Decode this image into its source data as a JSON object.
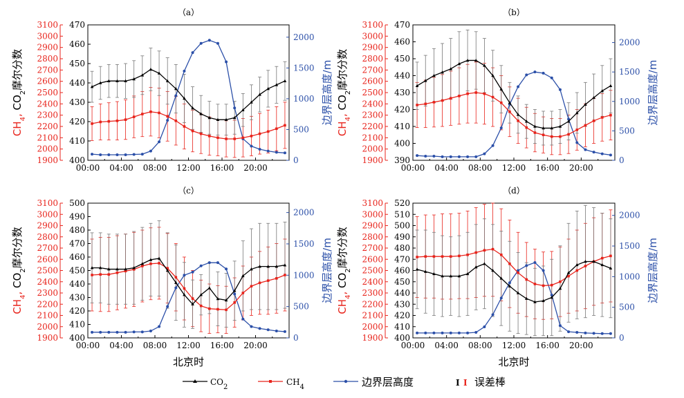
{
  "figure": {
    "ylabel_left_ch4": "CH",
    "ylabel_left_ch4_sub": "4",
    "ylabel_left_sep": ",",
    "ylabel_left_co2": "CO",
    "ylabel_left_co2_sub": "2",
    "ylabel_left_suffix": "摩尔分数",
    "ylabel_right": "边界层高度/m",
    "xlabel": "北京时",
    "legend": {
      "co2": "CO",
      "co2_sub": "2",
      "ch4": "CH",
      "ch4_sub": "4",
      "pbl": "边界层高度",
      "err": "误差棒",
      "err_glyph": "I"
    },
    "colors": {
      "co2": "#000000",
      "ch4": "#e8231b",
      "pbl": "#2b4fa8"
    }
  },
  "chart_data": [
    {
      "type": "line",
      "title": "（a）",
      "x": [
        0,
        1,
        2,
        3,
        4,
        5,
        6,
        7,
        8,
        9,
        10,
        11,
        12,
        13,
        14,
        15,
        16,
        17,
        18,
        19,
        20,
        21,
        22,
        23
      ],
      "xticks": [
        "00:00",
        "04:00",
        "08:00",
        "12:00",
        "16:00",
        "20:00"
      ],
      "co2_axis": {
        "lim": [
          400,
          470
        ],
        "ticks": [
          400,
          410,
          420,
          430,
          440,
          450,
          460,
          470
        ]
      },
      "ch4_axis": {
        "lim": [
          1900,
          3100
        ],
        "ticks": [
          1900,
          2000,
          2100,
          2200,
          2300,
          2400,
          2500,
          2600,
          2700,
          2800,
          2900,
          3000,
          3100
        ]
      },
      "pbl_axis": {
        "lim": [
          0,
          2200
        ],
        "ticks": [
          0,
          500,
          1000,
          1500,
          2000
        ]
      },
      "series": [
        {
          "name": "CO2",
          "values": [
            438,
            440,
            441,
            441,
            441,
            442,
            444,
            447,
            445,
            441,
            437,
            432,
            427,
            424,
            422,
            421,
            421,
            422,
            426,
            430,
            434,
            437,
            439,
            441
          ],
          "err": [
            8,
            8.5,
            8.5,
            8.5,
            9,
            9.5,
            10,
            11,
            11.5,
            12,
            12.5,
            12.5,
            11,
            9.5,
            8.5,
            8,
            8,
            8.5,
            8.5,
            9,
            9,
            9.5,
            9.5,
            10
          ]
        },
        {
          "name": "CH4",
          "values": [
            2225,
            2240,
            2245,
            2250,
            2260,
            2285,
            2310,
            2330,
            2320,
            2290,
            2250,
            2200,
            2160,
            2135,
            2115,
            2100,
            2090,
            2090,
            2100,
            2115,
            2135,
            2155,
            2180,
            2210
          ],
          "err": [
            150,
            160,
            165,
            170,
            175,
            185,
            200,
            215,
            220,
            220,
            215,
            200,
            185,
            175,
            170,
            160,
            160,
            165,
            170,
            175,
            180,
            190,
            195,
            205
          ]
        },
        {
          "name": "边界层高度",
          "values": [
            100,
            90,
            90,
            90,
            90,
            95,
            100,
            150,
            300,
            650,
            1050,
            1450,
            1750,
            1900,
            1950,
            1900,
            1600,
            850,
            350,
            230,
            180,
            150,
            130,
            120
          ]
        }
      ]
    },
    {
      "type": "line",
      "title": "（b）",
      "x": [
        0,
        1,
        2,
        3,
        4,
        5,
        6,
        7,
        8,
        9,
        10,
        11,
        12,
        13,
        14,
        15,
        16,
        17,
        18,
        19,
        20,
        21,
        22,
        23
      ],
      "xticks": [
        "00:00",
        "04:00",
        "08:00",
        "12:00",
        "16:00",
        "20:00"
      ],
      "co2_axis": {
        "lim": [
          390,
          470
        ],
        "ticks": [
          390,
          400,
          410,
          420,
          430,
          440,
          450,
          460,
          470
        ]
      },
      "ch4_axis": {
        "lim": [
          1900,
          3100
        ],
        "ticks": [
          1900,
          2000,
          2100,
          2200,
          2300,
          2400,
          2500,
          2600,
          2700,
          2800,
          2900,
          3000,
          3100
        ]
      },
      "pbl_axis": {
        "lim": [
          0,
          2300
        ],
        "ticks": [
          0,
          500,
          1000,
          1500,
          2000
        ]
      },
      "series": [
        {
          "name": "CO2",
          "values": [
            434,
            437,
            440,
            442,
            444,
            447,
            449,
            449,
            446,
            440,
            432,
            424,
            417,
            413,
            410,
            409,
            409,
            410,
            413,
            418,
            423,
            427,
            431,
            434
          ],
          "err": [
            14,
            15,
            16,
            17,
            18,
            19,
            18,
            17,
            16,
            15,
            14,
            12,
            11,
            10,
            10,
            10,
            10,
            10,
            11,
            12,
            13,
            14,
            15,
            16
          ]
        },
        {
          "name": "CH4",
          "values": [
            2390,
            2400,
            2415,
            2430,
            2450,
            2470,
            2490,
            2500,
            2490,
            2460,
            2410,
            2330,
            2250,
            2190,
            2145,
            2125,
            2110,
            2110,
            2130,
            2170,
            2210,
            2250,
            2280,
            2300
          ],
          "err": [
            200,
            210,
            220,
            230,
            240,
            250,
            260,
            270,
            270,
            260,
            240,
            220,
            200,
            180,
            170,
            160,
            160,
            160,
            170,
            180,
            190,
            200,
            210,
            220
          ]
        },
        {
          "name": "边界层高度",
          "values": [
            80,
            70,
            70,
            60,
            60,
            60,
            60,
            60,
            110,
            250,
            550,
            950,
            1250,
            1450,
            1500,
            1480,
            1400,
            1200,
            700,
            300,
            180,
            140,
            110,
            90
          ]
        }
      ]
    },
    {
      "type": "line",
      "title": "（c）",
      "x": [
        0,
        1,
        2,
        3,
        4,
        5,
        6,
        7,
        8,
        9,
        10,
        11,
        12,
        13,
        14,
        15,
        16,
        17,
        18,
        19,
        20,
        21,
        22,
        23
      ],
      "xticks": [
        "00:00",
        "04:00",
        "08:00",
        "12:00",
        "16:00",
        "20:00"
      ],
      "co2_axis": {
        "lim": [
          400,
          500
        ],
        "ticks": [
          400,
          410,
          420,
          430,
          440,
          450,
          460,
          470,
          480,
          490,
          500
        ]
      },
      "ch4_axis": {
        "lim": [
          1900,
          3100
        ],
        "ticks": [
          1900,
          2000,
          2100,
          2200,
          2300,
          2400,
          2500,
          2600,
          2700,
          2800,
          2900,
          3000,
          3100
        ]
      },
      "pbl_axis": {
        "lim": [
          0,
          2150
        ],
        "ticks": [
          0,
          500,
          1000,
          1500,
          2000
        ]
      },
      "series": [
        {
          "name": "CO2",
          "values": [
            452,
            452,
            451,
            451,
            451,
            452,
            455,
            458,
            459,
            450,
            441,
            432,
            425,
            432,
            437,
            429,
            428,
            435,
            446,
            451,
            453,
            453,
            453,
            454
          ],
          "err": [
            26,
            26,
            26,
            26,
            26,
            27,
            27,
            27,
            28,
            28,
            28,
            24,
            18,
            15,
            19,
            20,
            20,
            22,
            26,
            30,
            32,
            32,
            32,
            32
          ]
        },
        {
          "name": "CH4",
          "values": [
            2460,
            2465,
            2465,
            2480,
            2495,
            2510,
            2540,
            2560,
            2565,
            2520,
            2440,
            2340,
            2250,
            2185,
            2160,
            2155,
            2150,
            2215,
            2300,
            2360,
            2390,
            2410,
            2430,
            2460
          ],
          "err": [
            320,
            330,
            330,
            330,
            330,
            330,
            320,
            320,
            320,
            310,
            300,
            280,
            250,
            230,
            220,
            210,
            210,
            220,
            240,
            260,
            280,
            300,
            310,
            320
          ]
        },
        {
          "name": "边界层高度",
          "values": [
            90,
            90,
            90,
            90,
            90,
            95,
            95,
            110,
            180,
            500,
            800,
            1000,
            1050,
            1150,
            1200,
            1200,
            1100,
            700,
            300,
            180,
            150,
            130,
            110,
            100
          ]
        }
      ]
    },
    {
      "type": "line",
      "title": "（d）",
      "x": [
        0,
        1,
        2,
        3,
        4,
        5,
        6,
        7,
        8,
        9,
        10,
        11,
        12,
        13,
        14,
        15,
        16,
        17,
        18,
        19,
        20,
        21,
        22,
        23
      ],
      "xticks": [
        "00:00",
        "04:00",
        "08:00",
        "12:00",
        "16:00",
        "20:00"
      ],
      "co2_axis": {
        "lim": [
          400,
          520
        ],
        "ticks": [
          400,
          410,
          420,
          430,
          440,
          450,
          460,
          470,
          480,
          490,
          500,
          510,
          520
        ]
      },
      "ch4_axis": {
        "lim": [
          1900,
          3100
        ],
        "ticks": [
          1900,
          2000,
          2100,
          2200,
          2300,
          2400,
          2500,
          2600,
          2700,
          2800,
          2900,
          3000,
          3100
        ]
      },
      "pbl_axis": {
        "lim": [
          0,
          2200
        ],
        "ticks": [
          0,
          500,
          1000,
          1500,
          2000
        ]
      },
      "series": [
        {
          "name": "CO2",
          "values": [
            461,
            459,
            457,
            455,
            455,
            455,
            457,
            463,
            466,
            460,
            453,
            446,
            440,
            435,
            432,
            433,
            436,
            444,
            458,
            465,
            468,
            468,
            465,
            462
          ],
          "err": [
            35,
            37,
            37,
            36,
            35,
            36,
            37,
            38,
            40,
            41,
            42,
            40,
            36,
            32,
            30,
            31,
            34,
            38,
            44,
            48,
            50,
            48,
            46,
            44
          ]
        },
        {
          "name": "CH4",
          "values": [
            2620,
            2625,
            2625,
            2625,
            2625,
            2630,
            2640,
            2660,
            2680,
            2690,
            2640,
            2560,
            2480,
            2420,
            2380,
            2365,
            2370,
            2400,
            2450,
            2500,
            2540,
            2580,
            2610,
            2630
          ],
          "err": [
            360,
            370,
            370,
            380,
            380,
            380,
            390,
            400,
            410,
            420,
            410,
            390,
            360,
            330,
            310,
            300,
            300,
            310,
            330,
            360,
            380,
            390,
            400,
            410
          ]
        },
        {
          "name": "边界层高度",
          "values": [
            80,
            80,
            80,
            80,
            80,
            80,
            80,
            90,
            180,
            380,
            650,
            900,
            1100,
            1180,
            1230,
            1100,
            700,
            200,
            100,
            90,
            80,
            75,
            70,
            70
          ]
        }
      ]
    }
  ]
}
